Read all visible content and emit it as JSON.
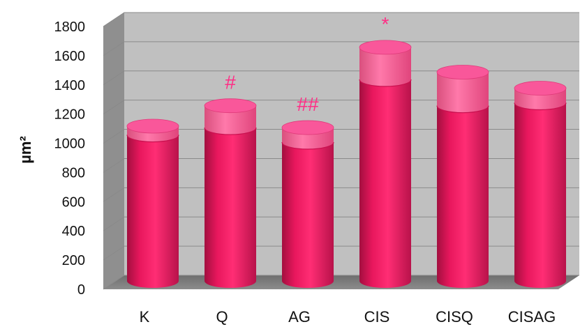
{
  "chart_data": {
    "type": "bar",
    "style": "3d-stacked-cylinder",
    "categories": [
      "K",
      "Q",
      "AG",
      "CIS",
      "CISQ",
      "CISAG"
    ],
    "series": [
      {
        "values": [
          1000,
          1050,
          950,
          1380,
          1200,
          1220
        ],
        "color": "#e8175d"
      },
      {
        "values": [
          60,
          150,
          100,
          220,
          230,
          100
        ],
        "color": "#ff6fa3"
      }
    ],
    "annotations": [
      "",
      "#",
      "##",
      "*",
      "",
      ""
    ],
    "ylabel": "µm²",
    "xlabel": "",
    "title": "",
    "ylim": [
      0,
      1800
    ],
    "yticks": [
      "0",
      "200",
      "400",
      "600",
      "800",
      "1000",
      "1200",
      "1400",
      "1600",
      "1800"
    ],
    "grid": true,
    "legend": "none"
  },
  "colors": {
    "wall": "#c0c0c0",
    "side_wall": "#8f8f8f",
    "floor": "#7a7a7a",
    "gridline": "#8a8a8a",
    "bar_main": "#e8175d",
    "bar_top": "#ff6fa3",
    "annotation": "#ff2d85"
  }
}
